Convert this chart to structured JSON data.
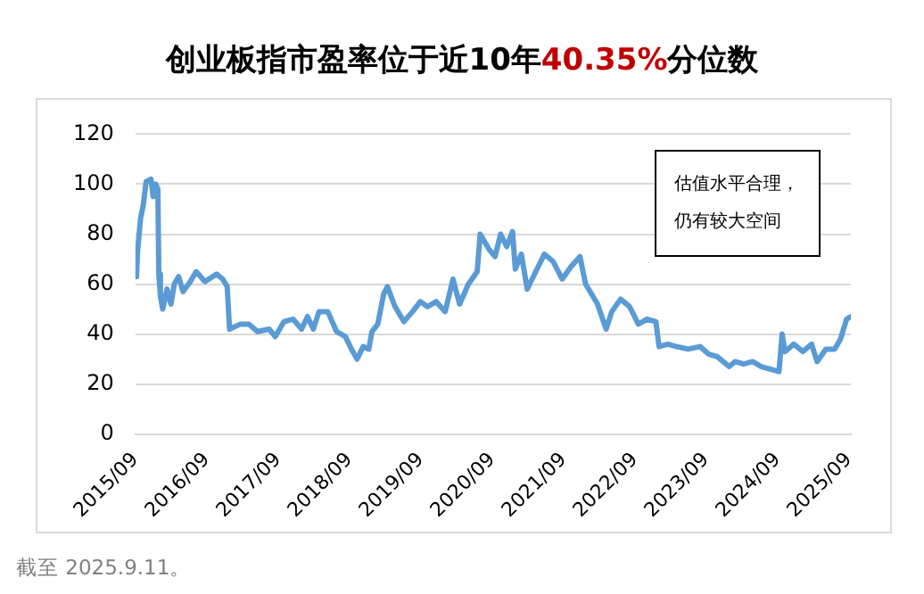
{
  "chart_data": {
    "type": "line",
    "title": "创业板指市盈率位于近10年40.35%分位数",
    "annotations": [
      "估值水平合理，仍有较大空间",
      "截至 2025.9.11。"
    ],
    "x": [
      "2015-09-07",
      "2015-09-12",
      "2015-09-27",
      "2015-10-12",
      "2015-10-26",
      "2015-11-20",
      "2015-12-01",
      "2015-12-14",
      "2015-12-25",
      "2015-12-30",
      "2016-01-07",
      "2016-01-19",
      "2016-02-10",
      "2016-03-01",
      "2016-03-18",
      "2016-04-09",
      "2016-05-02",
      "2016-06-08",
      "2016-07-08",
      "2016-08-22",
      "2016-10-21",
      "2016-11-21",
      "2016-12-14",
      "2016-12-26",
      "2017-02-20",
      "2017-04-04",
      "2017-05-18",
      "2017-07-17",
      "2017-08-17",
      "2017-10-01",
      "2017-11-16",
      "2017-12-30",
      "2018-01-29",
      "2018-02-28",
      "2018-03-29",
      "2018-05-13",
      "2018-06-27",
      "2018-08-11",
      "2018-09-11",
      "2018-10-10",
      "2018-11-10",
      "2018-12-09",
      "2018-12-25",
      "2019-01-24",
      "2019-02-23",
      "2019-03-14",
      "2019-04-22",
      "2019-06-07",
      "2019-07-21",
      "2019-08-30",
      "2019-10-05",
      "2019-11-19",
      "2020-01-04",
      "2020-02-13",
      "2020-03-18",
      "2020-05-02",
      "2020-06-16",
      "2020-07-01",
      "2020-08-15",
      "2020-09-15",
      "2020-10-14",
      "2020-11-14",
      "2020-12-14",
      "2020-12-28",
      "2021-01-28",
      "2021-02-27",
      "2021-04-12",
      "2021-05-26",
      "2021-07-10",
      "2021-08-25",
      "2021-10-09",
      "2021-11-24",
      "2021-12-23",
      "2022-02-22",
      "2022-04-07",
      "2022-05-06",
      "2022-06-20",
      "2022-08-05",
      "2022-09-19",
      "2022-11-03",
      "2022-12-18",
      "2023-01-03",
      "2023-02-17",
      "2023-04-02",
      "2023-06-01",
      "2023-08-01",
      "2023-09-14",
      "2023-10-28",
      "2023-12-28",
      "2024-01-27",
      "2024-03-12",
      "2024-04-26",
      "2024-06-10",
      "2024-07-25",
      "2024-09-08",
      "2024-09-24",
      "2024-10-09",
      "2024-11-23",
      "2025-01-08",
      "2025-02-22",
      "2025-03-22",
      "2025-05-06",
      "2025-06-20",
      "2025-07-20",
      "2025-08-20",
      "2025-09-11"
    ],
    "series": [
      {
        "color": "#5b9bd5",
        "values": [
          63,
          73,
          86,
          92,
          101,
          102,
          95,
          100,
          98,
          64,
          55,
          50,
          58,
          52,
          60,
          63,
          57,
          61,
          65,
          61,
          64,
          62,
          59,
          42,
          44,
          44,
          41,
          42,
          39,
          45,
          46,
          42,
          47,
          42,
          49,
          49,
          41,
          39,
          34,
          30,
          35,
          34,
          41,
          44,
          56,
          59,
          51,
          45,
          49,
          53,
          51,
          53,
          49,
          62,
          52,
          60,
          65,
          80,
          74,
          71,
          80,
          75,
          81,
          66,
          72,
          58,
          65,
          72,
          69,
          62,
          67,
          71,
          60,
          52,
          42,
          49,
          54,
          51,
          44,
          46,
          45,
          35,
          36,
          35,
          34,
          35,
          32,
          31,
          27,
          29,
          28,
          29,
          27,
          26,
          25,
          40,
          33,
          36,
          33,
          36,
          29,
          34,
          34,
          38,
          46,
          47
        ]
      }
    ],
    "xlim": [
      "2015-09-01",
      "2025-09-11"
    ],
    "xticks": [
      {
        "value": "2015-09",
        "label": "2015/09"
      },
      {
        "value": "2016-09",
        "label": "2016/09"
      },
      {
        "value": "2017-09",
        "label": "2017/09"
      },
      {
        "value": "2018-09",
        "label": "2018/09"
      },
      {
        "value": "2019-09",
        "label": "2019/09"
      },
      {
        "value": "2020-09",
        "label": "2020/09"
      },
      {
        "value": "2021-09",
        "label": "2021/09"
      },
      {
        "value": "2022-09",
        "label": "2022/09"
      },
      {
        "value": "2023-09",
        "label": "2023/09"
      },
      {
        "value": "2024-09",
        "label": "2024/09"
      },
      {
        "value": "2025-09",
        "label": "2025/09"
      }
    ],
    "ylim": [
      0,
      120
    ],
    "yticks": [
      0,
      20,
      40,
      60,
      80,
      100,
      120
    ],
    "grid": "y",
    "legend": false,
    "marker": "none",
    "line_style": "solid"
  }
}
